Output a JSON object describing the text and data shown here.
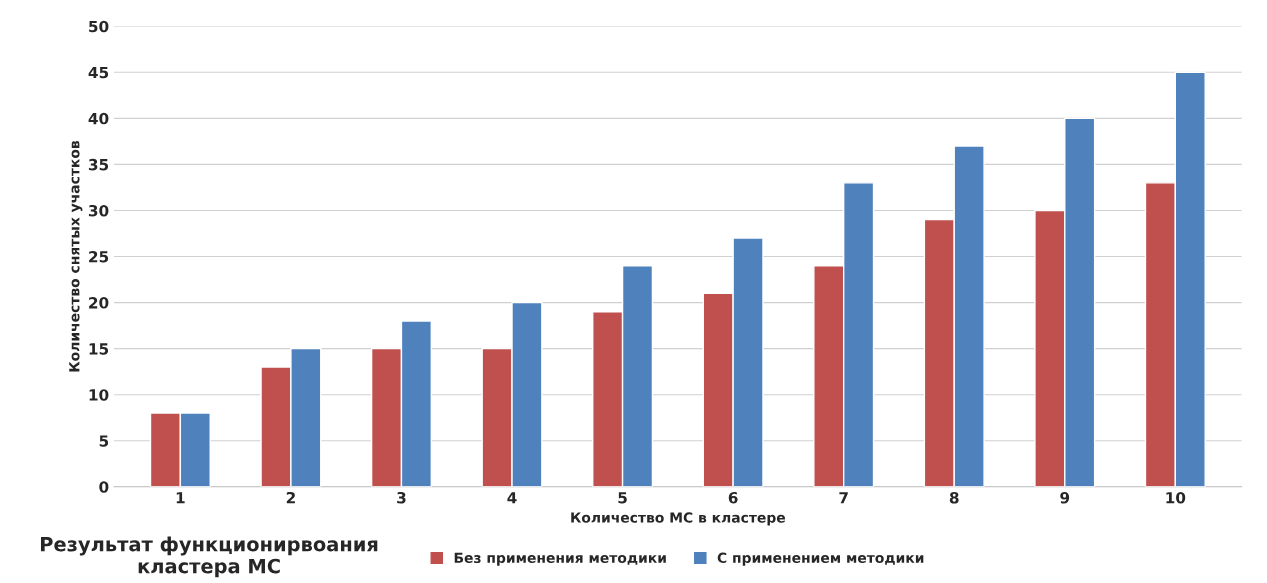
{
  "chart_data": {
    "type": "bar",
    "title": "Результат функционирвоания\nкластера МС",
    "xlabel": "Количество МС в кластере",
    "ylabel": "Количество снятых участков",
    "categories": [
      "1",
      "2",
      "3",
      "4",
      "5",
      "6",
      "7",
      "8",
      "9",
      "10"
    ],
    "series": [
      {
        "name": "Без применения методики",
        "color": "#c0504d",
        "values": [
          8,
          13,
          15,
          15,
          19,
          21,
          24,
          29,
          30,
          33
        ]
      },
      {
        "name": "С применением методики",
        "color": "#4f81bd",
        "values": [
          8,
          15,
          18,
          20,
          24,
          27,
          33,
          37,
          40,
          45
        ]
      }
    ],
    "ylim": [
      0,
      50
    ],
    "yticks": [
      0,
      5,
      10,
      15,
      20,
      25,
      30,
      35,
      40,
      45,
      50
    ],
    "grid": "y",
    "legend": "bottom"
  }
}
